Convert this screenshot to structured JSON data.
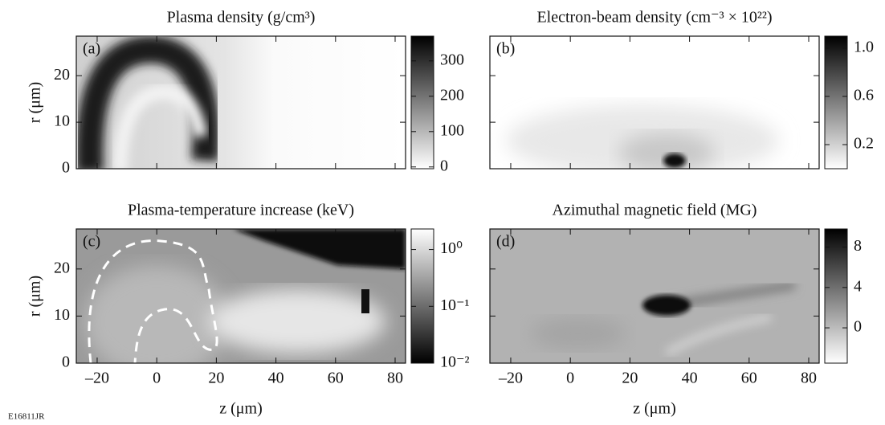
{
  "chart_data": [
    {
      "type": "heatmap",
      "title": "Plasma density (g/cm³)",
      "panel_label": "(a)",
      "ylabel": "r (μm)",
      "xlim": [
        -27,
        83.5
      ],
      "ylim": [
        0,
        28.5
      ],
      "xticks": [
        -20,
        0,
        20,
        40,
        60,
        80
      ],
      "yticks": [
        0,
        10,
        20
      ],
      "show_xtick_labels": false,
      "show_ytick_labels": true,
      "colormap": "white-to-black",
      "clim": [
        -5,
        370
      ],
      "cticks": [
        0,
        100,
        200,
        300
      ],
      "log_color": false
    },
    {
      "type": "heatmap",
      "title": "Electron-beam density (cm⁻³ × 10²²)",
      "panel_label": "(b)",
      "xlim": [
        -27,
        83.5
      ],
      "ylim": [
        0,
        28.5
      ],
      "xticks": [
        -20,
        0,
        20,
        40,
        60,
        80
      ],
      "yticks": [
        0,
        10,
        20
      ],
      "show_xtick_labels": false,
      "show_ytick_labels": false,
      "colormap": "white-to-black",
      "clim": [
        0,
        1.1
      ],
      "cticks": [
        0.2,
        0.6,
        {
          "value": 1.0,
          "label": "1.0"
        }
      ],
      "log_color": false
    },
    {
      "type": "heatmap",
      "title": "Plasma-temperature increase (keV)",
      "panel_label": "(c)",
      "ylabel": "r (μm)",
      "xlabel": "z (μm)",
      "xlim": [
        -27,
        83.5
      ],
      "ylim": [
        0,
        28.5
      ],
      "xticks": [
        {
          "value": -20,
          "label": "–20"
        },
        0,
        20,
        40,
        60,
        80
      ],
      "yticks": [
        0,
        10,
        20
      ],
      "show_xtick_labels": true,
      "show_ytick_labels": true,
      "colormap": "black-to-white",
      "clim": [
        0.01,
        2.3
      ],
      "log_color": true,
      "cticks": [
        {
          "value": 1,
          "label": "10⁰"
        },
        {
          "value": 0.1,
          "label": "10⁻¹"
        },
        {
          "value": 0.01,
          "label": "10⁻²"
        }
      ]
    },
    {
      "type": "heatmap",
      "title": "Azimuthal magnetic field (MG)",
      "panel_label": "(d)",
      "xlabel": "z (μm)",
      "xlim": [
        -27,
        83.5
      ],
      "ylim": [
        0,
        28.5
      ],
      "xticks": [
        {
          "value": -20,
          "label": "–20"
        },
        0,
        20,
        40,
        60,
        80
      ],
      "yticks": [
        0,
        10,
        20
      ],
      "show_xtick_labels": true,
      "show_ytick_labels": false,
      "colormap": "white-to-black",
      "clim": [
        -3.5,
        9.8
      ],
      "cticks": [
        0,
        4,
        8
      ],
      "log_color": false
    }
  ],
  "footer": "E16811JR"
}
